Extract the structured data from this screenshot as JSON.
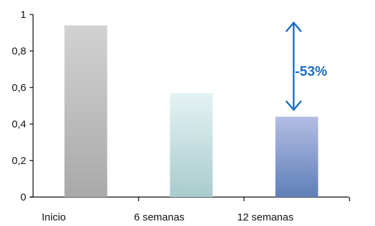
{
  "chart_data": {
    "type": "bar",
    "categories": [
      "Inicio",
      "6 semanas",
      "12 semanas"
    ],
    "values": [
      0.94,
      0.57,
      0.44
    ],
    "title": "",
    "xlabel": "",
    "ylabel": "",
    "ylim": [
      0,
      1
    ],
    "yticks": [
      0,
      0.2,
      0.4,
      0.6,
      0.8,
      1
    ],
    "ytick_labels": [
      "0",
      "0,2",
      "0,4",
      "0,6",
      "0,8",
      "1"
    ],
    "grid": false,
    "bar_colors": [
      {
        "top": "#d2d2d2",
        "bottom": "#a9a9a9"
      },
      {
        "top": "#e4f3f3",
        "bottom": "#a9cbcd"
      },
      {
        "top": "#b3bde3",
        "bottom": "#5f7fb8"
      }
    ],
    "annotation": {
      "text": "-53%",
      "from_value": 0.94,
      "to_value": 0.44,
      "category_index": 2,
      "color": "#1e6fc2"
    }
  }
}
